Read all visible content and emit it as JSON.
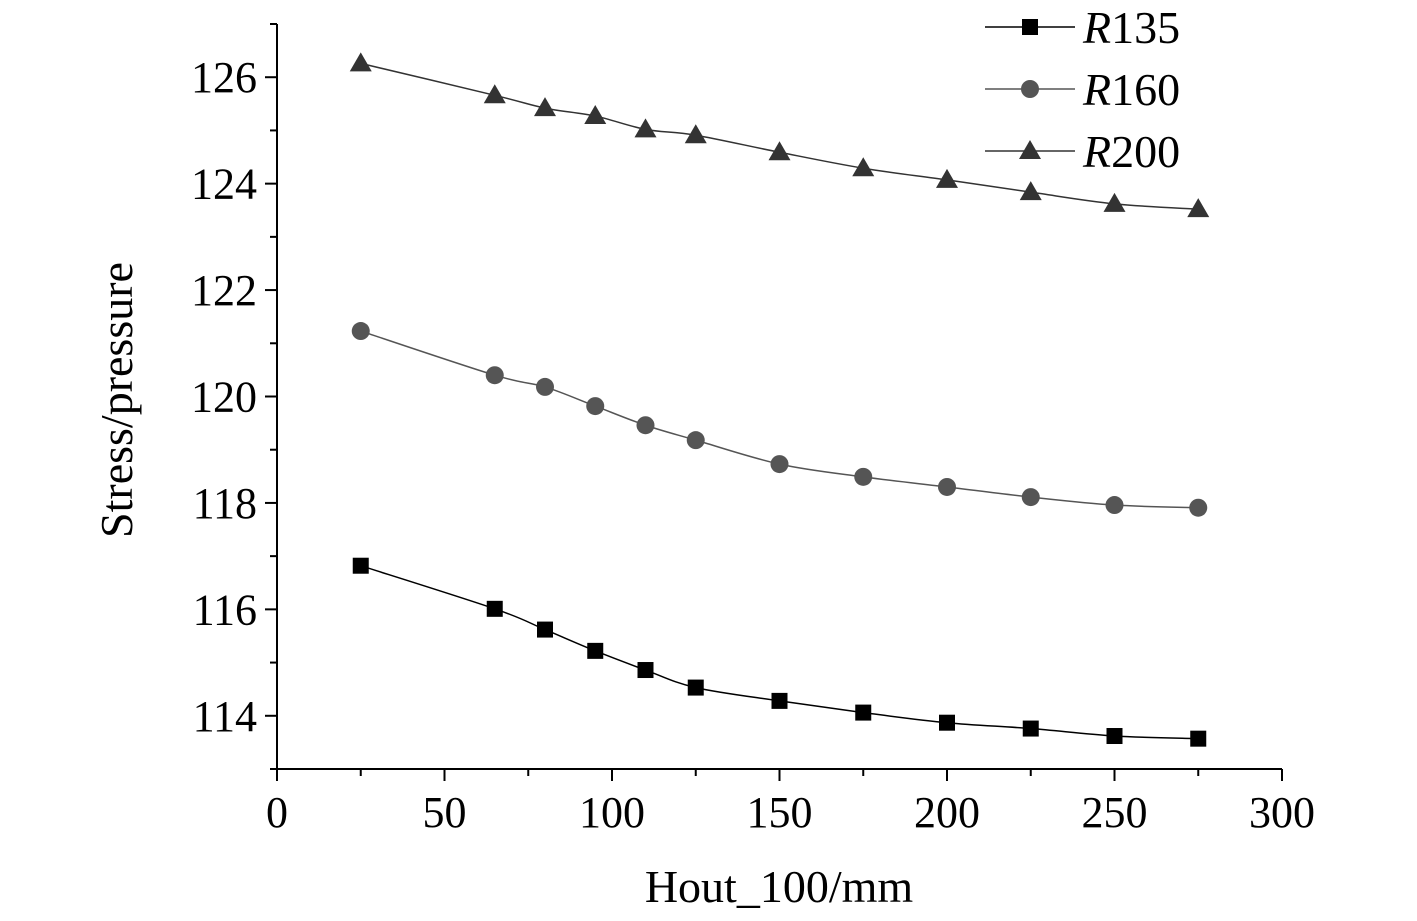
{
  "chart_data": {
    "type": "line",
    "title": "",
    "xlabel": "Hout_100/mm",
    "ylabel": "Stress/pressure",
    "xlim": [
      0,
      300
    ],
    "ylim": [
      113,
      127
    ],
    "xticks": [
      0,
      50,
      100,
      150,
      200,
      250,
      300
    ],
    "yticks": [
      114,
      116,
      118,
      120,
      122,
      124,
      126
    ],
    "grid": false,
    "legend_position": "top-right",
    "x": [
      25,
      65,
      80,
      95,
      110,
      125,
      150,
      175,
      200,
      225,
      250,
      275
    ],
    "series": [
      {
        "name": "R135",
        "prefix": "R",
        "suffix": "135",
        "marker": "square",
        "color": "#000000",
        "values": [
          116.82,
          116.01,
          115.62,
          115.22,
          114.86,
          114.53,
          114.28,
          114.06,
          113.87,
          113.76,
          113.62,
          113.57
        ]
      },
      {
        "name": "R160",
        "prefix": "R",
        "suffix": "160",
        "marker": "circle",
        "color": "#555555",
        "values": [
          121.23,
          120.4,
          120.18,
          119.82,
          119.46,
          119.18,
          118.73,
          118.49,
          118.3,
          118.11,
          117.96,
          117.91
        ]
      },
      {
        "name": "R200",
        "prefix": "R",
        "suffix": "200",
        "marker": "triangle",
        "color": "#333333",
        "values": [
          126.26,
          125.66,
          125.42,
          125.27,
          125.02,
          124.91,
          124.59,
          124.29,
          124.07,
          123.84,
          123.62,
          123.52
        ]
      }
    ]
  }
}
